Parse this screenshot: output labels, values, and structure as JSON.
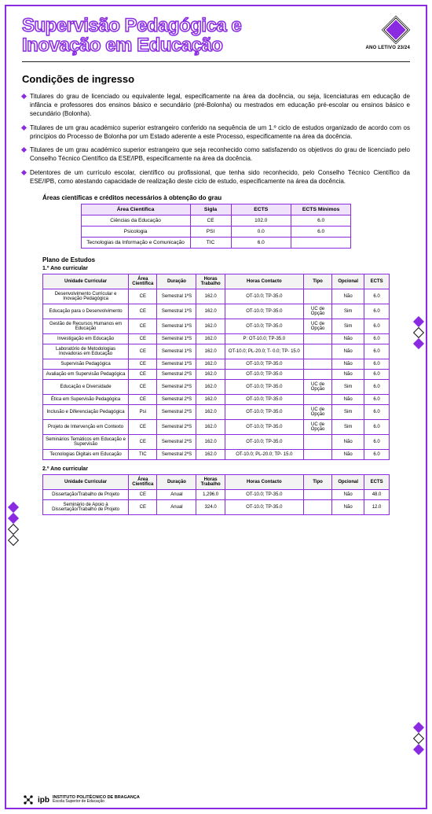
{
  "header": {
    "title_line1": "Supervisão Pedagógica e",
    "title_line2": "Inovação em Educação",
    "ano_letivo": "ANO LETIVO 23/24"
  },
  "section_title": "Condições de ingresso",
  "bullets": [
    "Titulares do grau de licenciado ou equivalente legal, especificamente na área da docência, ou seja, licenciaturas em educação de infância e professores dos ensinos básico e secundário (pré-Bolonha) ou mestrados em educação pré-escolar ou ensinos básico e secundário (Bolonha).",
    "Titulares de um grau académico superior estrangeiro conferido na sequência de um 1.º ciclo de estudos organizado de acordo com os princípios do Processo de Bolonha por um Estado aderente a este Processo, especificamente na área da docência.",
    "Titulares de um grau académico superior estrangeiro que seja reconhecido como satisfazendo os objetivos do grau de licenciado pelo Conselho Técnico Científico da ESE/IPB, especificamente na área da docência.",
    "Detentores de um currículo escolar, científico ou profissional, que tenha sido reconhecido, pelo Conselho Técnico Científico da ESE/IPB, como atestando capacidade de realização deste ciclo de estudo, especificamente na área da docência."
  ],
  "areas_title": "Áreas científicas e créditos necessários à obtenção do grau",
  "areas_table": {
    "columns": [
      "Área Científica",
      "Sigla",
      "ECTS",
      "ECTS Mínimos"
    ],
    "rows": [
      [
        "Ciências da Educação",
        "CE",
        "102.0",
        "6.0"
      ],
      [
        "Psicologia",
        "PSI",
        "0.0",
        "6.0"
      ],
      [
        "Tecnologias da Informação e Comunicação",
        "TIC",
        "6.0",
        ""
      ]
    ]
  },
  "plan_title": "Plano de Estudos",
  "year1_label": "1.º Ano curricular",
  "study_columns": [
    "Unidade Curricular",
    "Área Científica",
    "Duração",
    "Horas Trabalho",
    "Horas Contacto",
    "Tipo",
    "Opcional",
    "ECTS"
  ],
  "year1_rows": [
    [
      "Desenvolvimento Curricular e Inovação Pedagógica",
      "CE",
      "Semestral 1ºS",
      "162.0",
      "OT-10.0; TP-35.0",
      "",
      "Não",
      "6.0"
    ],
    [
      "Educação para o Desenvolvimento",
      "CE",
      "Semestral 1ºS",
      "162.0",
      "OT-10.0; TP-35.0",
      "UC de Opção",
      "Sim",
      "6.0"
    ],
    [
      "Gestão de Recursos Humanos em Educação",
      "CE",
      "Semestral 1ºS",
      "162.0",
      "OT-10.0; TP-35.0",
      "UC de Opção",
      "Sim",
      "6.0"
    ],
    [
      "Investigação em Educação",
      "CE",
      "Semestral 1ºS",
      "162.0",
      "P: OT-10.0; TP-35.0",
      "",
      "Não",
      "6.0"
    ],
    [
      "Laboratório de Metodologias Inovadoras em Educação",
      "CE",
      "Semestral 1ºS",
      "162.0",
      "OT-10.0; PL-20.0; T- 0.0; TP- 15.0",
      "",
      "Não",
      "6.0"
    ],
    [
      "Supervisão Pedagógica",
      "CE",
      "Semestral 1ºS",
      "162.0",
      "OT-10.0; TP-35.0",
      "",
      "Não",
      "6.0"
    ],
    [
      "Avaliação em Supervisão Pedagógica",
      "CE",
      "Semestral 2ºS",
      "162.0",
      "OT-10.0; TP-35.0",
      "",
      "Não",
      "6.0"
    ],
    [
      "Educação e Diversidade",
      "CE",
      "Semestral 2ºS",
      "162.0",
      "OT-10.0; TP-35.0",
      "UC de Opção",
      "Sim",
      "6.0"
    ],
    [
      "Ética em Supervisão Pedagógica",
      "CE",
      "Semestral 2ºS",
      "162.0",
      "OT-10.0; TP-35.0",
      "",
      "Não",
      "6.0"
    ],
    [
      "Inclusão e Diferenciação Pedagógica",
      "Psi",
      "Semestral 2ºS",
      "162.0",
      "OT-10.0; TP-35.0",
      "UC de Opção",
      "Sim",
      "6.0"
    ],
    [
      "Projeto de Intervenção em Contexto",
      "CE",
      "Semestral 2ºS",
      "162.0",
      "OT-10.0; TP-35.0",
      "UC de Opção",
      "Sim",
      "6.0"
    ],
    [
      "Seminários Temáticos em Educação e Supervisão",
      "CE",
      "Semestral 2ºS",
      "162.0",
      "OT-10.0; TP-35.0",
      "",
      "Não",
      "6.0"
    ],
    [
      "Tecnologias Digitais em Educação",
      "TIC",
      "Semestral 2ºS",
      "162.0",
      "OT-10.0; PL-20.0; TP- 15.0",
      "",
      "Não",
      "6.0"
    ]
  ],
  "year2_label": "2.º Ano curricular",
  "year2_rows": [
    [
      "Dissertação/Trabalho de Projeto",
      "CE",
      "Anual",
      "1,296.0",
      "OT-10.0; TP-35.0",
      "",
      "Não",
      "48.0"
    ],
    [
      "Seminário de Apoio à Dissertação/Trabalho de Projeto",
      "CE",
      "Anual",
      "324.0",
      "OT-10.0; TP-35.0",
      "",
      "Não",
      "12.0"
    ]
  ],
  "footer": {
    "brand": "ipb",
    "line1": "INSTITUTO POLITÉCNICO DE BRAGANÇA",
    "line2": "Escola Superior de Educação"
  },
  "colors": {
    "accent": "#8a2be2",
    "header_bg": "#efe2fa"
  }
}
